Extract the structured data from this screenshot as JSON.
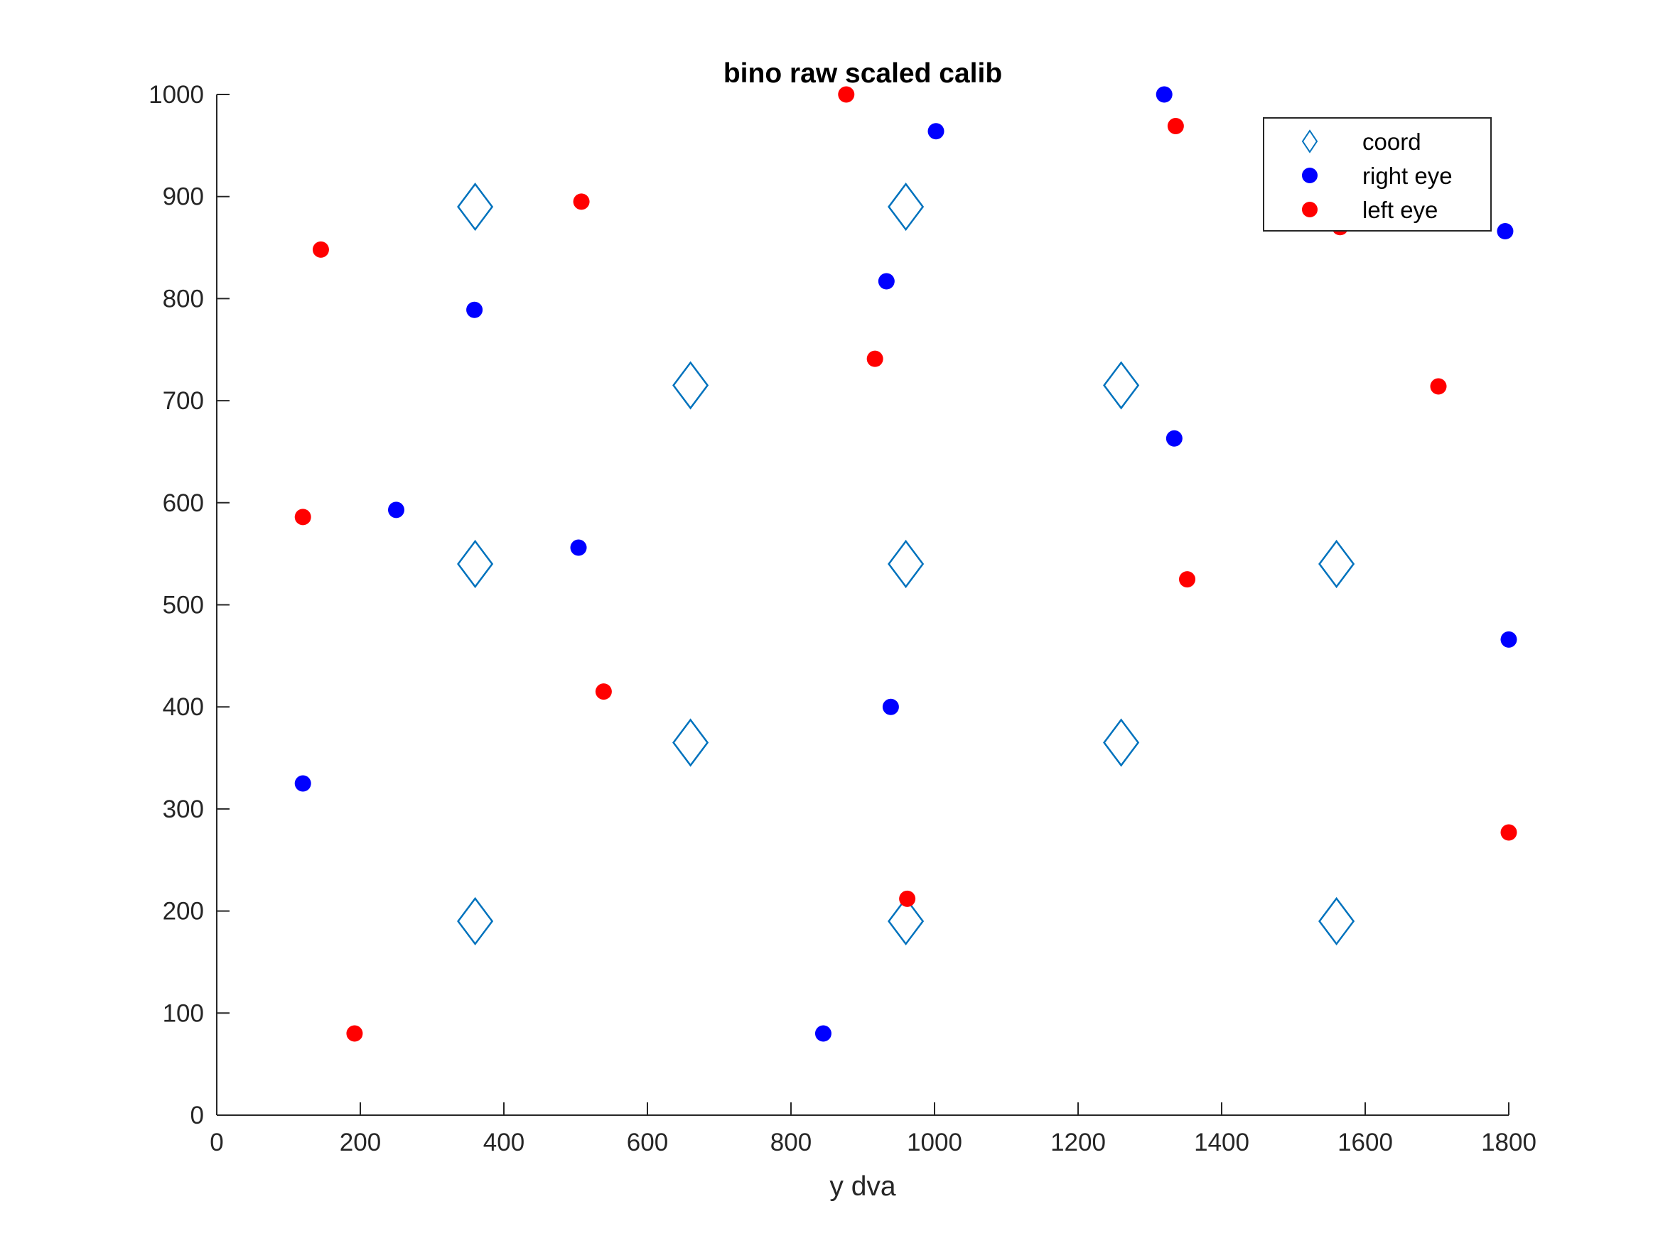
{
  "chart_data": {
    "type": "scatter",
    "title": "bino raw scaled calib",
    "xlabel": "y dva",
    "ylabel": "",
    "xlim": [
      0,
      1800
    ],
    "ylim": [
      0,
      1000
    ],
    "xticks": [
      "0",
      "200",
      "400",
      "600",
      "800",
      "1000",
      "1200",
      "1400",
      "1600",
      "1800"
    ],
    "yticks": [
      "0",
      "100",
      "200",
      "300",
      "400",
      "500",
      "600",
      "700",
      "800",
      "900",
      "1000"
    ],
    "grid": false,
    "legend_position": "top-right",
    "series": [
      {
        "name": "coord",
        "marker": "diamond-open",
        "color": "#0072BD",
        "points": [
          {
            "x": 360,
            "y": 890
          },
          {
            "x": 960,
            "y": 890
          },
          {
            "x": 660,
            "y": 715
          },
          {
            "x": 1260,
            "y": 715
          },
          {
            "x": 360,
            "y": 540
          },
          {
            "x": 960,
            "y": 540
          },
          {
            "x": 1560,
            "y": 540
          },
          {
            "x": 660,
            "y": 365
          },
          {
            "x": 1260,
            "y": 365
          },
          {
            "x": 360,
            "y": 190
          },
          {
            "x": 960,
            "y": 190
          },
          {
            "x": 1560,
            "y": 190
          }
        ]
      },
      {
        "name": "right eye",
        "marker": "dot",
        "color": "#0000FF",
        "points": [
          {
            "x": 1320,
            "y": 1000
          },
          {
            "x": 1002,
            "y": 964
          },
          {
            "x": 1795,
            "y": 866
          },
          {
            "x": 933,
            "y": 817
          },
          {
            "x": 359,
            "y": 789
          },
          {
            "x": 1334,
            "y": 663
          },
          {
            "x": 250,
            "y": 593
          },
          {
            "x": 504,
            "y": 556
          },
          {
            "x": 1800,
            "y": 466
          },
          {
            "x": 939,
            "y": 400
          },
          {
            "x": 120,
            "y": 325
          },
          {
            "x": 845,
            "y": 80
          }
        ]
      },
      {
        "name": "left eye",
        "marker": "dot",
        "color": "#FF0000",
        "points": [
          {
            "x": 877,
            "y": 1000
          },
          {
            "x": 1336,
            "y": 969
          },
          {
            "x": 508,
            "y": 895
          },
          {
            "x": 1565,
            "y": 870
          },
          {
            "x": 145,
            "y": 848
          },
          {
            "x": 917,
            "y": 741
          },
          {
            "x": 1702,
            "y": 714
          },
          {
            "x": 120,
            "y": 586
          },
          {
            "x": 1352,
            "y": 525
          },
          {
            "x": 539,
            "y": 415
          },
          {
            "x": 1800,
            "y": 277
          },
          {
            "x": 962,
            "y": 212
          },
          {
            "x": 192,
            "y": 80
          }
        ]
      }
    ]
  }
}
